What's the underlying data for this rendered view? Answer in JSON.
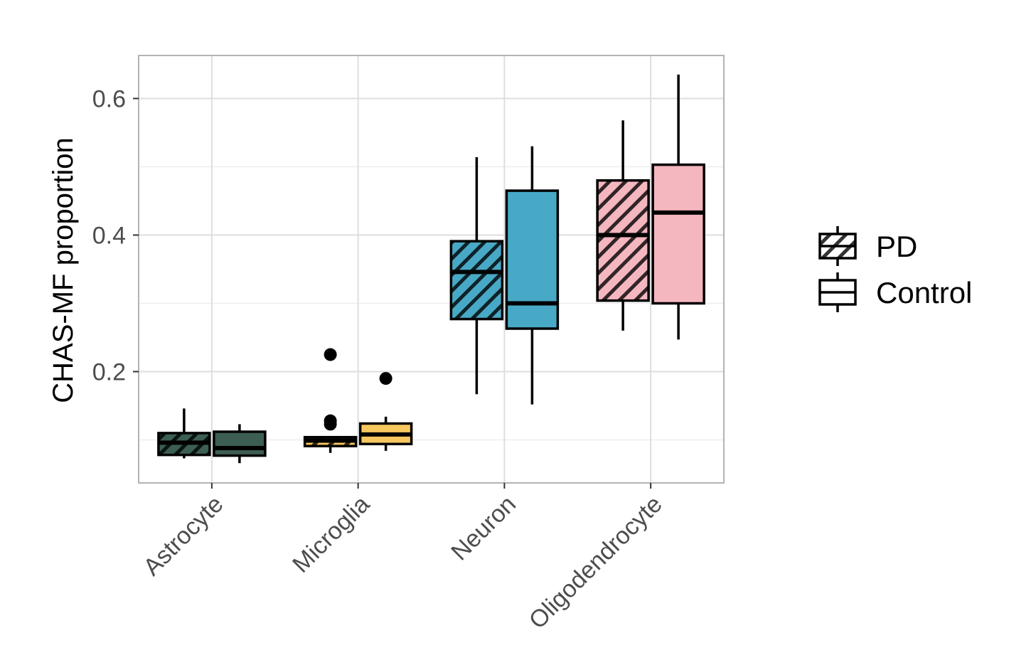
{
  "chart_data": {
    "type": "box",
    "title": "",
    "xlabel": "",
    "ylabel": "CHAS-MF proportion",
    "ylim": [
      0.037,
      0.663
    ],
    "yticks": [
      0.2,
      0.4,
      0.6
    ],
    "ytick_labels": [
      "0.2",
      "0.4",
      "0.6"
    ],
    "grid": true,
    "legend_position": "right",
    "categories": [
      "Astrocyte",
      "Microglia",
      "Neuron",
      "Oligodendrocyte"
    ],
    "colors": {
      "Astrocyte": "#3d5e52",
      "Microglia": "#f7c75f",
      "Neuron": "#47a9c6",
      "Oligodendrocyte": "#f4b6bf"
    },
    "series": [
      {
        "name": "PD",
        "pattern": "stripes",
        "boxes": [
          {
            "category": "Astrocyte",
            "whisker_low": 0.073,
            "q1": 0.078,
            "median": 0.096,
            "q3": 0.11,
            "whisker_high": 0.146,
            "outliers": []
          },
          {
            "category": "Microglia",
            "whisker_low": 0.081,
            "q1": 0.091,
            "median": 0.099,
            "q3": 0.104,
            "whisker_high": 0.104,
            "outliers": [
              0.123,
              0.128,
              0.225
            ]
          },
          {
            "category": "Neuron",
            "whisker_low": 0.167,
            "q1": 0.277,
            "median": 0.346,
            "q3": 0.391,
            "whisker_high": 0.514,
            "outliers": []
          },
          {
            "category": "Oligodendrocyte",
            "whisker_low": 0.26,
            "q1": 0.304,
            "median": 0.4,
            "q3": 0.48,
            "whisker_high": 0.568,
            "outliers": []
          }
        ]
      },
      {
        "name": "Control",
        "pattern": "solid",
        "boxes": [
          {
            "category": "Astrocyte",
            "whisker_low": 0.066,
            "q1": 0.077,
            "median": 0.088,
            "q3": 0.112,
            "whisker_high": 0.123,
            "outliers": []
          },
          {
            "category": "Microglia",
            "whisker_low": 0.084,
            "q1": 0.094,
            "median": 0.108,
            "q3": 0.124,
            "whisker_high": 0.134,
            "outliers": [
              0.19
            ]
          },
          {
            "category": "Neuron",
            "whisker_low": 0.152,
            "q1": 0.263,
            "median": 0.3,
            "q3": 0.465,
            "whisker_high": 0.53,
            "outliers": []
          },
          {
            "category": "Oligodendrocyte",
            "whisker_low": 0.247,
            "q1": 0.3,
            "median": 0.433,
            "q3": 0.503,
            "whisker_high": 0.635,
            "outliers": []
          }
        ]
      }
    ]
  }
}
